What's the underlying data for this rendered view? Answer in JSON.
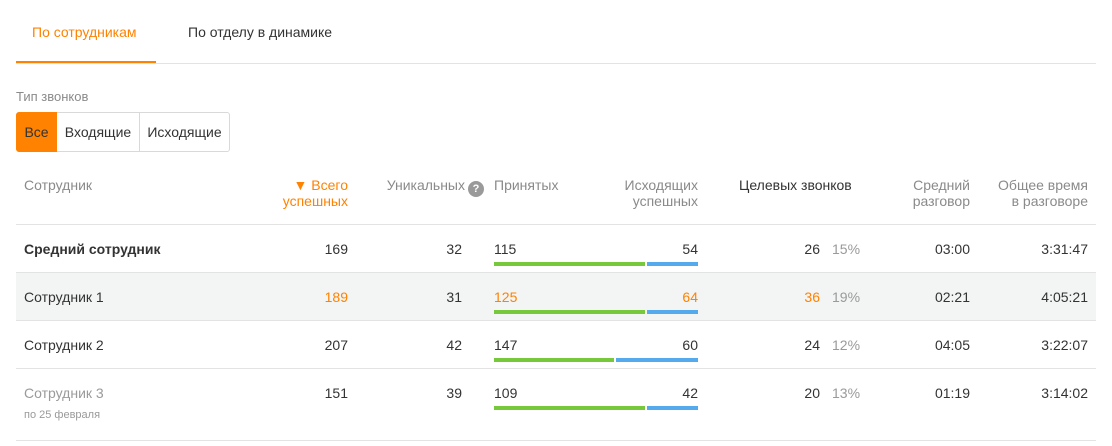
{
  "tabs": [
    {
      "label": "По сотрудникам",
      "active": true
    },
    {
      "label": "По отделу в динамике",
      "active": false
    }
  ],
  "filter": {
    "label": "Тип звонков",
    "options": [
      "Все",
      "Входящие",
      "Исходящие"
    ],
    "selected": "Все"
  },
  "columns": {
    "employee": "Сотрудник",
    "total_success_line1": "▼ Всего",
    "total_success_line2": "успешных",
    "unique": "Уникальных",
    "help_icon": "?",
    "accepted": "Принятых",
    "outgoing_line1": "Исходящих",
    "outgoing_line2": "успешных",
    "target": "Целевых звонков",
    "avg_line1": "Средний",
    "avg_line2": "разговор",
    "total_time_line1": "Общее время",
    "total_time_line2": "в разговоре"
  },
  "colors": {
    "accent": "#ff8200",
    "accepted_bar": "#78c83c",
    "outgoing_bar": "#55aaee"
  },
  "rows": [
    {
      "name": "Средний сотрудник",
      "total": "169",
      "unique": "32",
      "accepted": "115",
      "outgoing": "54",
      "target": "26",
      "target_pct": "15%",
      "avg": "03:00",
      "total_time": "3:31:47",
      "accepted_share": 0.74
    },
    {
      "name": "Сотрудник 1",
      "total": "189",
      "unique": "31",
      "accepted": "125",
      "outgoing": "64",
      "target": "36",
      "target_pct": "19%",
      "avg": "02:21",
      "total_time": "4:05:21",
      "accepted_share": 0.74
    },
    {
      "name": "Сотрудник 2",
      "total": "207",
      "unique": "42",
      "accepted": "147",
      "outgoing": "60",
      "target": "24",
      "target_pct": "12%",
      "avg": "04:05",
      "total_time": "3:22:07",
      "accepted_share": 0.59
    },
    {
      "name": "Сотрудник 3",
      "note": "по 25 февраля",
      "total": "151",
      "unique": "39",
      "accepted": "109",
      "outgoing": "42",
      "target": "20",
      "target_pct": "13%",
      "avg": "01:19",
      "total_time": "3:14:02",
      "accepted_share": 0.74
    }
  ]
}
